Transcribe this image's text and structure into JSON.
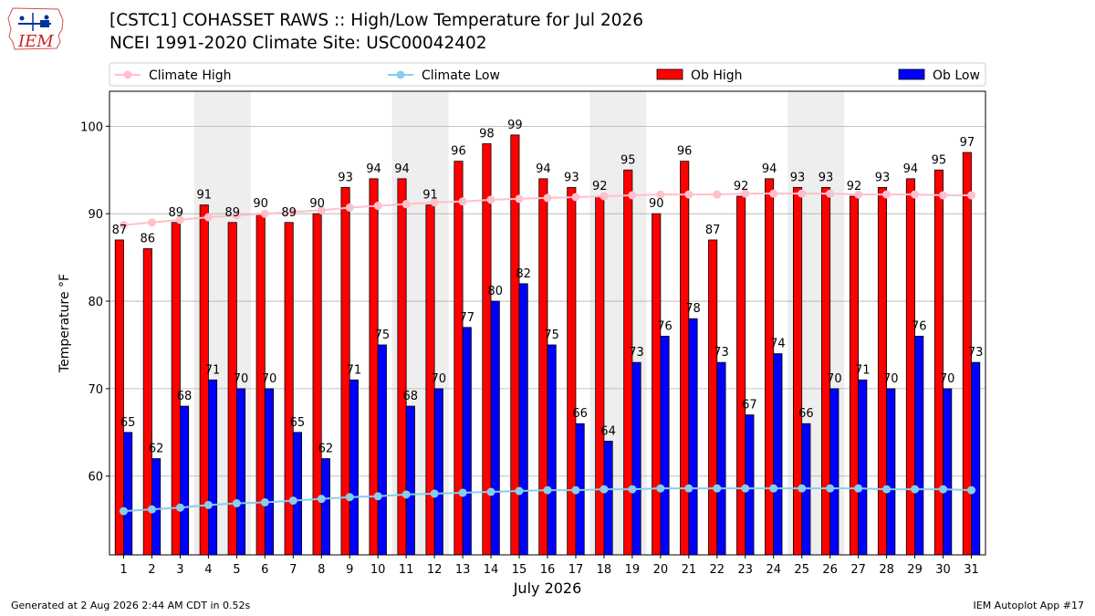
{
  "header": {
    "logo_text": "IEM",
    "title": "[CSTC1] COHASSET RAWS :: High/Low Temperature for Jul 2026",
    "subtitle": "NCEI 1991-2020 Climate Site: USC00042402"
  },
  "footer": {
    "generated": "Generated at 2 Aug 2026 2:44 AM CDT in 0.52s",
    "app": "IEM Autoplot App #17"
  },
  "colors": {
    "ob_high": "#ff0000",
    "ob_low": "#0000ff",
    "climate_high": "#ffc0cb",
    "climate_low": "#87ceeb",
    "weekend_shade": "#eeeeee",
    "grid": "#b0b0b0"
  },
  "chart_data": {
    "type": "bar",
    "xlabel": "July 2026",
    "ylabel": "Temperature °F",
    "ylim": [
      51,
      104
    ],
    "yticks": [
      60,
      70,
      80,
      90,
      100
    ],
    "grid": "horizontal",
    "legend_placement": "top",
    "categories": [
      "1",
      "2",
      "3",
      "4",
      "5",
      "6",
      "7",
      "8",
      "9",
      "10",
      "11",
      "12",
      "13",
      "14",
      "15",
      "16",
      "17",
      "18",
      "19",
      "20",
      "21",
      "22",
      "23",
      "24",
      "25",
      "26",
      "27",
      "28",
      "29",
      "30",
      "31"
    ],
    "shaded_days": [
      [
        4,
        5
      ],
      [
        11,
        12
      ],
      [
        18,
        19
      ],
      [
        25,
        26
      ]
    ],
    "series": [
      {
        "name": "Climate High",
        "kind": "line",
        "values": [
          88.7,
          89.0,
          89.3,
          89.6,
          89.8,
          90.0,
          90.2,
          90.4,
          90.7,
          90.9,
          91.1,
          91.3,
          91.4,
          91.6,
          91.7,
          91.8,
          91.9,
          92.0,
          92.1,
          92.2,
          92.2,
          92.2,
          92.3,
          92.3,
          92.3,
          92.3,
          92.2,
          92.2,
          92.2,
          92.1,
          92.1
        ]
      },
      {
        "name": "Climate Low",
        "kind": "line",
        "values": [
          56.0,
          56.2,
          56.4,
          56.7,
          56.9,
          57.0,
          57.2,
          57.4,
          57.6,
          57.7,
          57.9,
          58.0,
          58.1,
          58.2,
          58.3,
          58.4,
          58.4,
          58.5,
          58.5,
          58.6,
          58.6,
          58.6,
          58.6,
          58.6,
          58.6,
          58.6,
          58.6,
          58.5,
          58.5,
          58.5,
          58.4
        ]
      },
      {
        "name": "Ob High",
        "kind": "bar",
        "values": [
          87,
          86,
          89,
          91,
          89,
          90,
          89,
          90,
          93,
          94,
          94,
          91,
          96,
          98,
          99,
          94,
          93,
          92,
          95,
          90,
          96,
          87,
          92,
          94,
          93,
          93,
          92,
          93,
          94,
          95,
          97
        ]
      },
      {
        "name": "Ob Low",
        "kind": "bar",
        "values": [
          65,
          62,
          68,
          71,
          70,
          70,
          65,
          62,
          71,
          75,
          68,
          70,
          77,
          80,
          82,
          75,
          66,
          64,
          73,
          76,
          78,
          73,
          67,
          74,
          66,
          70,
          71,
          70,
          76,
          70,
          73
        ]
      }
    ]
  }
}
